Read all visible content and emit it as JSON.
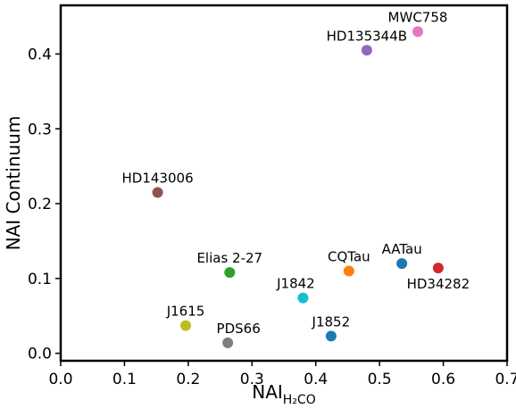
{
  "chart_data": {
    "type": "scatter",
    "xlabel": {
      "main": "NAI",
      "sub": "H₂CO"
    },
    "ylabel": "NAI Continuum",
    "xlim": [
      0.0,
      0.7
    ],
    "ylim": [
      -0.01,
      0.465
    ],
    "xticks": [
      "0.0",
      "0.1",
      "0.2",
      "0.3",
      "0.4",
      "0.5",
      "0.6",
      "0.7"
    ],
    "yticks": [
      "0.0",
      "0.1",
      "0.2",
      "0.3",
      "0.4"
    ],
    "grid": false,
    "points": [
      {
        "label": "MWC758",
        "x": 0.56,
        "y": 0.43,
        "color": "#e377c2",
        "anchor": "above"
      },
      {
        "label": "HD135344B",
        "x": 0.48,
        "y": 0.405,
        "color": "#9467bd",
        "anchor": "above"
      },
      {
        "label": "HD143006",
        "x": 0.152,
        "y": 0.215,
        "color": "#8c564b",
        "anchor": "above"
      },
      {
        "label": "Elias 2-27",
        "x": 0.265,
        "y": 0.108,
        "color": "#2ca02c",
        "anchor": "above"
      },
      {
        "label": "CQTau",
        "x": 0.452,
        "y": 0.11,
        "color": "#ff7f0e",
        "anchor": "above"
      },
      {
        "label": "AATau",
        "x": 0.535,
        "y": 0.12,
        "color": "#1f77b4",
        "anchor": "above"
      },
      {
        "label": "HD34282",
        "x": 0.592,
        "y": 0.114,
        "color": "#d62728",
        "anchor": "below"
      },
      {
        "label": "J1842",
        "x": 0.38,
        "y": 0.074,
        "color": "#17becf",
        "anchor": "above-left"
      },
      {
        "label": "J1615",
        "x": 0.196,
        "y": 0.037,
        "color": "#bcbd22",
        "anchor": "above"
      },
      {
        "label": "PDS66",
        "x": 0.262,
        "y": 0.014,
        "color": "#7f7f7f",
        "anchor": "above-right"
      },
      {
        "label": "J1852",
        "x": 0.424,
        "y": 0.023,
        "color": "#1f77b4",
        "anchor": "above"
      }
    ]
  }
}
